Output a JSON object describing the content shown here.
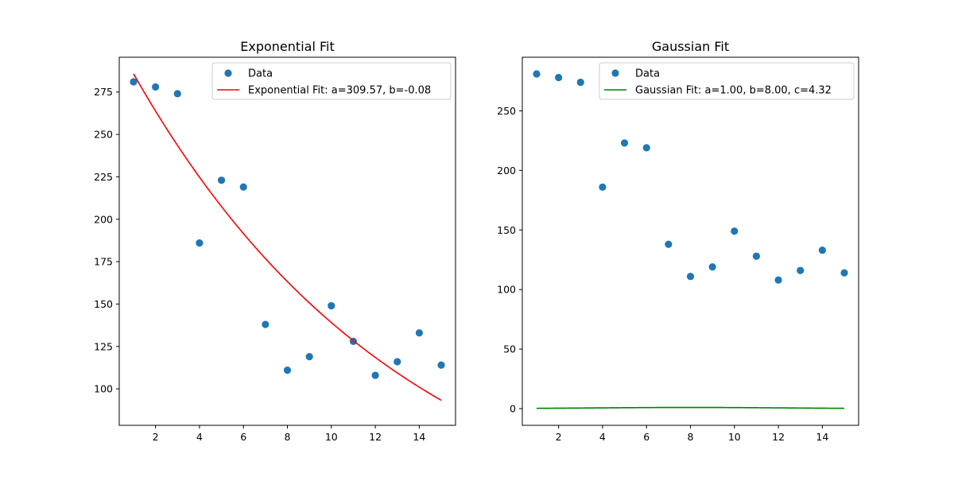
{
  "chart_data": [
    {
      "type": "scatter",
      "title": "Exponential Fit",
      "xlabel": "",
      "ylabel": "",
      "xlim": [
        0.35,
        15.65
      ],
      "ylim": [
        78.5,
        295.5
      ],
      "xticks": [
        2,
        4,
        6,
        8,
        10,
        12,
        14
      ],
      "yticks": [
        100,
        125,
        150,
        175,
        200,
        225,
        250,
        275
      ],
      "grid": false,
      "legend_position": "upper right",
      "series": [
        {
          "name": "Data",
          "kind": "scatter",
          "color": "#1f77b4",
          "x": [
            1,
            2,
            3,
            4,
            5,
            6,
            7,
            8,
            9,
            10,
            11,
            12,
            13,
            14,
            15
          ],
          "y": [
            281,
            278,
            274,
            186,
            223,
            219,
            138,
            111,
            119,
            149,
            128,
            108,
            116,
            133,
            114
          ]
        },
        {
          "name": "Exponential Fit: a=309.57, b=-0.08",
          "kind": "line",
          "color": "#ff0000",
          "model": "exponential",
          "params": {
            "a": 309.57,
            "b": -0.08
          },
          "x_range": [
            1,
            15
          ]
        }
      ]
    },
    {
      "type": "scatter",
      "title": "Gaussian Fit",
      "xlabel": "",
      "ylabel": "",
      "xlim": [
        0.35,
        15.65
      ],
      "ylim": [
        -14,
        295
      ],
      "xticks": [
        2,
        4,
        6,
        8,
        10,
        12,
        14
      ],
      "yticks": [
        0,
        50,
        100,
        150,
        200,
        250
      ],
      "grid": false,
      "legend_position": "upper right",
      "series": [
        {
          "name": "Data",
          "kind": "scatter",
          "color": "#1f77b4",
          "x": [
            1,
            2,
            3,
            4,
            5,
            6,
            7,
            8,
            9,
            10,
            11,
            12,
            13,
            14,
            15
          ],
          "y": [
            281,
            278,
            274,
            186,
            223,
            219,
            138,
            111,
            119,
            149,
            128,
            108,
            116,
            133,
            114
          ]
        },
        {
          "name": "Gaussian Fit: a=1.00, b=8.00, c=4.32",
          "kind": "line",
          "color": "#008000",
          "model": "gaussian",
          "params": {
            "a": 1.0,
            "b": 8.0,
            "c": 4.32
          },
          "x_range": [
            1,
            15
          ]
        }
      ]
    }
  ]
}
